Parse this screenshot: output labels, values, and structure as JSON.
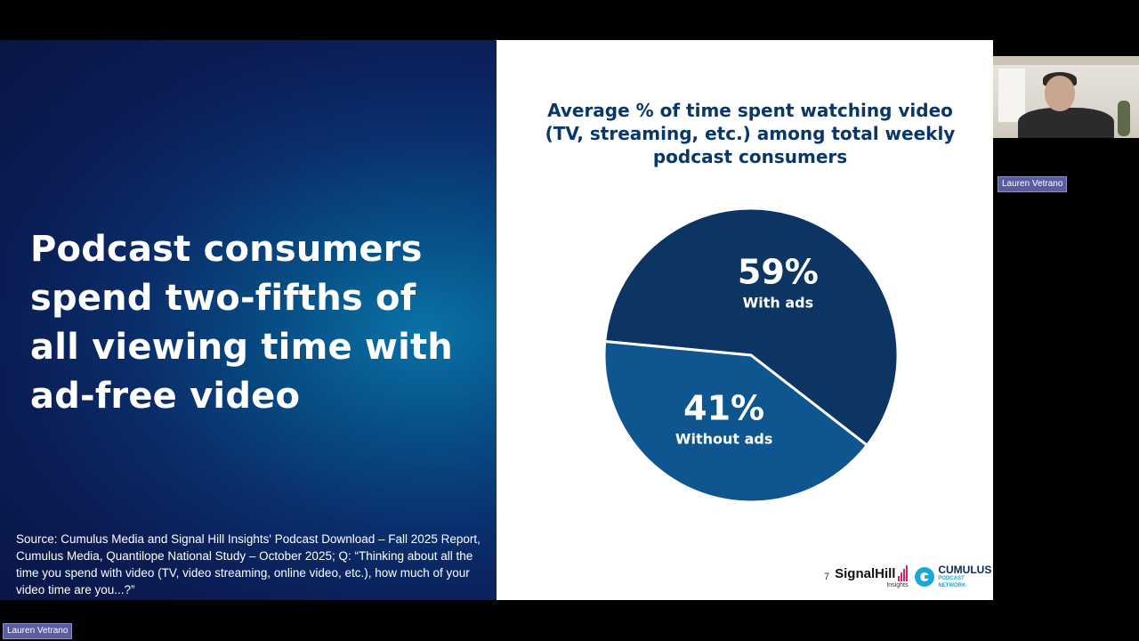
{
  "slide": {
    "headline": "Podcast consumers spend two-fifths of all viewing time with ad-free video",
    "source": "Source: Cumulus Media and Signal Hill Insights' Podcast Download – Fall 2025 Report, Cumulus Media, Quantilope National Study – October 2025; Q: “Thinking about all the time you spend with video (TV, video streaming, online video, etc.), how much of your video time are you...?”",
    "page_number": "7",
    "logos": {
      "signalhill_name": "SignalHill",
      "signalhill_sub": "Insights",
      "cumulus_name": "CUMULUS",
      "cumulus_sub": "PODCAST NETWORK"
    }
  },
  "chart_data": {
    "type": "pie",
    "title": "Average % of time spent watching video (TV, streaming, etc.) among total weekly podcast consumers",
    "slices": [
      {
        "label": "With ads",
        "value": 59,
        "display": "59%",
        "color": "#0c3564"
      },
      {
        "label": "Without ads",
        "value": 41,
        "display": "41%",
        "color": "#0f5690"
      }
    ]
  },
  "participants": {
    "webcam_name": "Lauren Vetrano",
    "presenter_name": "Lauren Vetrano"
  },
  "colors": {
    "slide_text": "#ffffff",
    "title_color": "#0b3766",
    "name_tag": "#5a5da0"
  }
}
